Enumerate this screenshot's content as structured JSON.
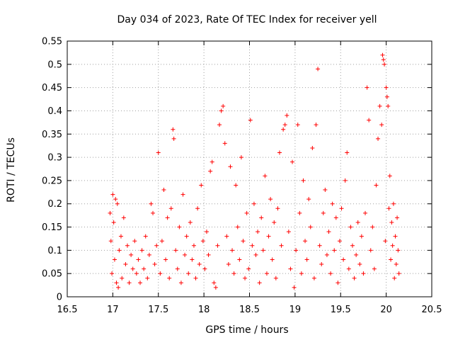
{
  "chart_data": {
    "type": "scatter",
    "title": "Day 034 of 2023, Rate Of TEC Index for receiver yell",
    "xlabel": "GPS time / hours",
    "ylabel": "ROTI / TECUs",
    "xlim": [
      16.5,
      20.5
    ],
    "ylim": [
      0,
      0.55
    ],
    "x_ticks": [
      16.5,
      17,
      17.5,
      18,
      18.5,
      19,
      19.5,
      20,
      20.5
    ],
    "x_tick_labels": [
      "16.5",
      "17",
      "17.5",
      "18",
      "18.5",
      "19",
      "19.5",
      "20",
      "20.5"
    ],
    "y_ticks": [
      0,
      0.05,
      0.1,
      0.15,
      0.2,
      0.25,
      0.3,
      0.35,
      0.4,
      0.45,
      0.5,
      0.55
    ],
    "y_tick_labels": [
      "0",
      "0.05",
      "0.1",
      "0.15",
      "0.2",
      "0.25",
      "0.3",
      "0.35",
      "0.4",
      "0.45",
      "0.5",
      "0.55"
    ],
    "grid": true,
    "marker": "+",
    "color": "#ff0000",
    "series": [
      {
        "name": "ROTI",
        "points": [
          [
            16.97,
            0.18
          ],
          [
            16.98,
            0.12
          ],
          [
            16.99,
            0.05
          ],
          [
            17.0,
            0.22
          ],
          [
            17.01,
            0.16
          ],
          [
            17.02,
            0.08
          ],
          [
            17.03,
            0.21
          ],
          [
            17.04,
            0.03
          ],
          [
            17.05,
            0.2
          ],
          [
            17.06,
            0.02
          ],
          [
            17.07,
            0.1
          ],
          [
            17.09,
            0.13
          ],
          [
            17.1,
            0.04
          ],
          [
            17.12,
            0.17
          ],
          [
            17.14,
            0.07
          ],
          [
            17.16,
            0.11
          ],
          [
            17.18,
            0.03
          ],
          [
            17.2,
            0.09
          ],
          [
            17.22,
            0.06
          ],
          [
            17.24,
            0.12
          ],
          [
            17.26,
            0.05
          ],
          [
            17.28,
            0.08
          ],
          [
            17.3,
            0.03
          ],
          [
            17.32,
            0.1
          ],
          [
            17.34,
            0.06
          ],
          [
            17.36,
            0.13
          ],
          [
            17.38,
            0.04
          ],
          [
            17.4,
            0.09
          ],
          [
            17.42,
            0.2
          ],
          [
            17.44,
            0.18
          ],
          [
            17.46,
            0.07
          ],
          [
            17.48,
            0.11
          ],
          [
            17.5,
            0.31
          ],
          [
            17.52,
            0.05
          ],
          [
            17.54,
            0.12
          ],
          [
            17.56,
            0.23
          ],
          [
            17.58,
            0.08
          ],
          [
            17.6,
            0.17
          ],
          [
            17.62,
            0.04
          ],
          [
            17.64,
            0.19
          ],
          [
            17.66,
            0.36
          ],
          [
            17.67,
            0.34
          ],
          [
            17.69,
            0.1
          ],
          [
            17.71,
            0.06
          ],
          [
            17.73,
            0.15
          ],
          [
            17.75,
            0.03
          ],
          [
            17.77,
            0.22
          ],
          [
            17.79,
            0.09
          ],
          [
            17.81,
            0.13
          ],
          [
            17.83,
            0.05
          ],
          [
            17.85,
            0.16
          ],
          [
            17.87,
            0.08
          ],
          [
            17.89,
            0.11
          ],
          [
            17.91,
            0.04
          ],
          [
            17.93,
            0.19
          ],
          [
            17.95,
            0.07
          ],
          [
            17.97,
            0.24
          ],
          [
            17.99,
            0.12
          ],
          [
            18.01,
            0.06
          ],
          [
            18.03,
            0.14
          ],
          [
            18.05,
            0.09
          ],
          [
            18.07,
            0.27
          ],
          [
            18.09,
            0.29
          ],
          [
            18.11,
            0.03
          ],
          [
            18.13,
            0.02
          ],
          [
            18.15,
            0.11
          ],
          [
            18.17,
            0.37
          ],
          [
            18.19,
            0.4
          ],
          [
            18.21,
            0.41
          ],
          [
            18.23,
            0.33
          ],
          [
            18.25,
            0.13
          ],
          [
            18.27,
            0.07
          ],
          [
            18.29,
            0.28
          ],
          [
            18.31,
            0.1
          ],
          [
            18.33,
            0.05
          ],
          [
            18.35,
            0.24
          ],
          [
            18.37,
            0.15
          ],
          [
            18.39,
            0.08
          ],
          [
            18.41,
            0.3
          ],
          [
            18.43,
            0.12
          ],
          [
            18.45,
            0.04
          ],
          [
            18.47,
            0.18
          ],
          [
            18.49,
            0.06
          ],
          [
            18.51,
            0.38
          ],
          [
            18.53,
            0.11
          ],
          [
            18.55,
            0.2
          ],
          [
            18.57,
            0.09
          ],
          [
            18.59,
            0.14
          ],
          [
            18.61,
            0.03
          ],
          [
            18.63,
            0.17
          ],
          [
            18.65,
            0.1
          ],
          [
            18.67,
            0.26
          ],
          [
            18.69,
            0.05
          ],
          [
            18.71,
            0.13
          ],
          [
            18.73,
            0.21
          ],
          [
            18.75,
            0.08
          ],
          [
            18.77,
            0.16
          ],
          [
            18.79,
            0.04
          ],
          [
            18.81,
            0.19
          ],
          [
            18.83,
            0.31
          ],
          [
            18.85,
            0.11
          ],
          [
            18.87,
            0.36
          ],
          [
            18.89,
            0.37
          ],
          [
            18.91,
            0.39
          ],
          [
            18.93,
            0.14
          ],
          [
            18.95,
            0.06
          ],
          [
            18.97,
            0.29
          ],
          [
            18.99,
            0.02
          ],
          [
            19.01,
            0.1
          ],
          [
            19.03,
            0.37
          ],
          [
            19.05,
            0.18
          ],
          [
            19.07,
            0.05
          ],
          [
            19.09,
            0.25
          ],
          [
            19.11,
            0.12
          ],
          [
            19.13,
            0.08
          ],
          [
            19.15,
            0.21
          ],
          [
            19.17,
            0.15
          ],
          [
            19.19,
            0.32
          ],
          [
            19.21,
            0.04
          ],
          [
            19.23,
            0.37
          ],
          [
            19.25,
            0.49
          ],
          [
            19.27,
            0.11
          ],
          [
            19.29,
            0.07
          ],
          [
            19.31,
            0.18
          ],
          [
            19.33,
            0.23
          ],
          [
            19.35,
            0.09
          ],
          [
            19.37,
            0.14
          ],
          [
            19.39,
            0.05
          ],
          [
            19.41,
            0.2
          ],
          [
            19.43,
            0.1
          ],
          [
            19.45,
            0.17
          ],
          [
            19.47,
            0.03
          ],
          [
            19.49,
            0.12
          ],
          [
            19.51,
            0.19
          ],
          [
            19.53,
            0.08
          ],
          [
            19.55,
            0.25
          ],
          [
            19.57,
            0.31
          ],
          [
            19.59,
            0.06
          ],
          [
            19.61,
            0.15
          ],
          [
            19.63,
            0.11
          ],
          [
            19.65,
            0.04
          ],
          [
            19.67,
            0.09
          ],
          [
            19.69,
            0.16
          ],
          [
            19.71,
            0.07
          ],
          [
            19.73,
            0.13
          ],
          [
            19.75,
            0.05
          ],
          [
            19.77,
            0.18
          ],
          [
            19.79,
            0.45
          ],
          [
            19.81,
            0.38
          ],
          [
            19.83,
            0.1
          ],
          [
            19.85,
            0.15
          ],
          [
            19.87,
            0.06
          ],
          [
            19.89,
            0.24
          ],
          [
            19.91,
            0.34
          ],
          [
            19.93,
            0.41
          ],
          [
            19.95,
            0.37
          ],
          [
            19.96,
            0.52
          ],
          [
            19.97,
            0.51
          ],
          [
            19.98,
            0.5
          ],
          [
            19.99,
            0.12
          ],
          [
            20.0,
            0.45
          ],
          [
            20.01,
            0.43
          ],
          [
            20.02,
            0.41
          ],
          [
            20.03,
            0.19
          ],
          [
            20.04,
            0.26
          ],
          [
            20.05,
            0.08
          ],
          [
            20.06,
            0.16
          ],
          [
            20.07,
            0.11
          ],
          [
            20.08,
            0.2
          ],
          [
            20.09,
            0.04
          ],
          [
            20.1,
            0.13
          ],
          [
            20.11,
            0.07
          ],
          [
            20.12,
            0.17
          ],
          [
            20.13,
            0.1
          ],
          [
            20.14,
            0.05
          ]
        ]
      }
    ]
  }
}
